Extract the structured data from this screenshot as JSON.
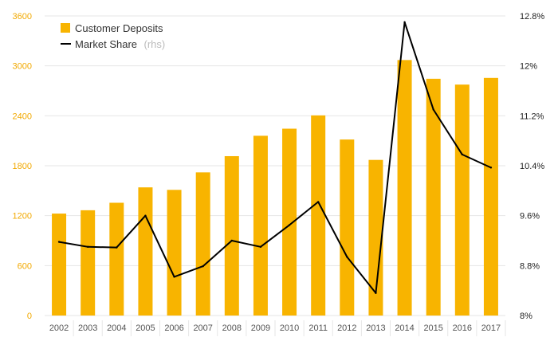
{
  "chart_data": {
    "type": "bar+line",
    "categories": [
      "2002",
      "2003",
      "2004",
      "2005",
      "2006",
      "2007",
      "2008",
      "2009",
      "2010",
      "2011",
      "2012",
      "2013",
      "2014",
      "2015",
      "2016",
      "2017"
    ],
    "series": [
      {
        "name": "Customer Deposits",
        "type": "bar",
        "axis": "left",
        "values": [
          1225,
          1265,
          1355,
          1540,
          1510,
          1720,
          1915,
          2160,
          2245,
          2405,
          2115,
          1870,
          3070,
          2845,
          2775,
          2855
        ]
      },
      {
        "name": "Market Share",
        "type": "line",
        "axis": "right",
        "values": [
          9.18,
          9.1,
          9.09,
          9.6,
          8.62,
          8.79,
          9.2,
          9.1,
          9.45,
          9.82,
          8.94,
          8.36,
          12.7,
          11.3,
          10.58,
          10.37
        ]
      }
    ],
    "left_axis": {
      "ylim": [
        0,
        3600
      ],
      "ticks": [
        "0",
        "600",
        "1200",
        "1800",
        "2400",
        "3000",
        "3600"
      ]
    },
    "right_axis": {
      "ylim": [
        8,
        12.8
      ],
      "ticks": [
        "8%",
        "8.8%",
        "9.6%",
        "10.4%",
        "11.2%",
        "12%",
        "12.8%"
      ]
    },
    "legend": {
      "position": "top-left",
      "items": [
        {
          "label": "Customer Deposits",
          "suffix": ""
        },
        {
          "label": "Market Share",
          "suffix": "(rhs)"
        }
      ]
    },
    "grid": true,
    "colors": {
      "bar": "#f8b400",
      "line": "#000000",
      "left_tick": "#f2a900",
      "grid": "#e6e6e6"
    }
  }
}
